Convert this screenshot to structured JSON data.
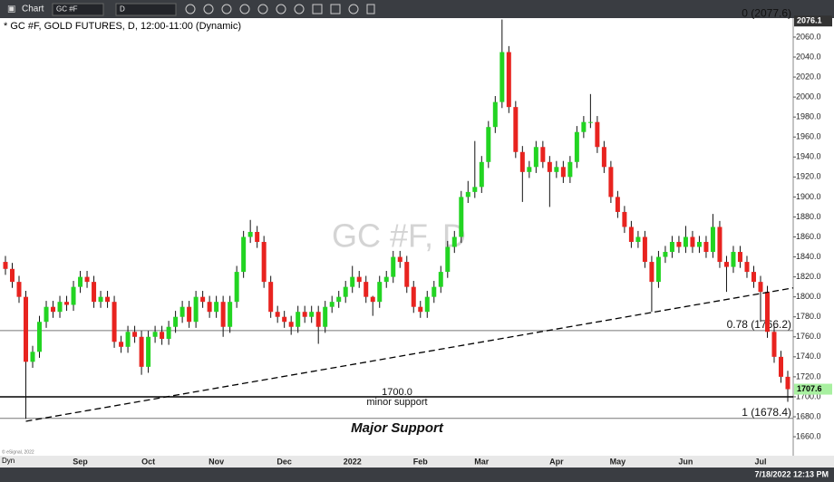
{
  "toolbar": {
    "app": "Chart",
    "symbol": "GC #F",
    "interval": "D"
  },
  "footer": {
    "mode": "Dyn",
    "timestamp": "7/18/2022 12:13 PM",
    "copyright": "© eSignal, 2022"
  },
  "chart_data": {
    "type": "candlestick",
    "title": "* GC #F, GOLD FUTURES, D, 12:00-11:00 (Dynamic)",
    "watermark": "GC #F, D",
    "categories": [
      null,
      null,
      null,
      null,
      null,
      null,
      null,
      null,
      null,
      null,
      null,
      "Sep",
      null,
      null,
      null,
      null,
      null,
      null,
      null,
      null,
      null,
      "Oct",
      null,
      null,
      null,
      null,
      null,
      null,
      null,
      null,
      null,
      "Nov",
      null,
      null,
      null,
      null,
      null,
      null,
      null,
      null,
      null,
      "Dec",
      null,
      null,
      null,
      null,
      null,
      null,
      null,
      null,
      null,
      "2022",
      null,
      null,
      null,
      null,
      null,
      null,
      null,
      null,
      null,
      "Feb",
      null,
      null,
      null,
      null,
      null,
      null,
      null,
      null,
      "Mar",
      null,
      null,
      null,
      null,
      null,
      null,
      null,
      null,
      null,
      null,
      "Apr",
      null,
      null,
      null,
      null,
      null,
      null,
      null,
      null,
      "May",
      null,
      null,
      null,
      null,
      null,
      null,
      null,
      null,
      null,
      "Jun",
      null,
      null,
      null,
      null,
      null,
      null,
      null,
      null,
      null,
      null,
      "Jul",
      null,
      null,
      null,
      null
    ],
    "up_color": "#22d422",
    "down_color": "#e8231f",
    "series": {
      "open": [
        1835,
        1828,
        1815,
        1800,
        1735,
        1745,
        1775,
        1790,
        1785,
        1795,
        1792,
        1810,
        1820,
        1815,
        1795,
        1800,
        1795,
        1755,
        1750,
        1765,
        1760,
        1730,
        1760,
        1765,
        1758,
        1770,
        1780,
        1790,
        1775,
        1800,
        1795,
        1785,
        1795,
        1770,
        1795,
        1825,
        1860,
        1865,
        1855,
        1815,
        1785,
        1780,
        1775,
        1770,
        1785,
        1780,
        1785,
        1770,
        1790,
        1795,
        1800,
        1810,
        1820,
        1815,
        1800,
        1795,
        1815,
        1820,
        1840,
        1835,
        1810,
        1790,
        1785,
        1800,
        1810,
        1825,
        1850,
        1860,
        1900,
        1905,
        1910,
        1935,
        1970,
        1995,
        2045,
        1990,
        1945,
        1925,
        1930,
        1950,
        1935,
        1925,
        1930,
        1920,
        1935,
        1965,
        1975,
        1975,
        1950,
        1930,
        1900,
        1885,
        1870,
        1855,
        1860,
        1835,
        1815,
        1840,
        1845,
        1855,
        1850,
        1860,
        1850,
        1855,
        1845,
        1870,
        1835,
        1830,
        1845,
        1835,
        1825,
        1815,
        1805,
        1765,
        1740,
        1720
      ],
      "high": [
        1841,
        1834,
        1821,
        1806,
        1751,
        1781,
        1796,
        1796,
        1801,
        1801,
        1816,
        1826,
        1826,
        1821,
        1806,
        1806,
        1801,
        1761,
        1771,
        1771,
        1766,
        1766,
        1771,
        1771,
        1776,
        1786,
        1796,
        1796,
        1806,
        1806,
        1801,
        1801,
        1801,
        1801,
        1831,
        1866,
        1877,
        1871,
        1861,
        1821,
        1791,
        1786,
        1781,
        1791,
        1791,
        1791,
        1791,
        1796,
        1801,
        1806,
        1816,
        1831,
        1826,
        1821,
        1801,
        1821,
        1826,
        1846,
        1846,
        1841,
        1816,
        1796,
        1806,
        1816,
        1831,
        1856,
        1866,
        1906,
        1916,
        1956,
        1941,
        1976,
        2001,
        2077.6,
        2051,
        1996,
        1951,
        1936,
        1956,
        1956,
        1941,
        1936,
        1936,
        1941,
        1971,
        1981,
        2003,
        1981,
        1956,
        1936,
        1906,
        1891,
        1876,
        1866,
        1866,
        1841,
        1846,
        1851,
        1861,
        1861,
        1871,
        1866,
        1861,
        1861,
        1883,
        1876,
        1841,
        1851,
        1851,
        1841,
        1831,
        1821,
        1811,
        1771,
        1746,
        1726
      ],
      "low": [
        1822,
        1809,
        1794,
        1678,
        1729,
        1739,
        1769,
        1779,
        1779,
        1786,
        1786,
        1804,
        1809,
        1789,
        1789,
        1789,
        1749,
        1744,
        1744,
        1754,
        1722,
        1724,
        1754,
        1752,
        1752,
        1764,
        1774,
        1769,
        1769,
        1789,
        1779,
        1779,
        1760,
        1764,
        1789,
        1819,
        1854,
        1849,
        1809,
        1779,
        1774,
        1769,
        1762,
        1764,
        1774,
        1774,
        1753,
        1764,
        1784,
        1789,
        1794,
        1804,
        1809,
        1794,
        1781,
        1789,
        1809,
        1814,
        1829,
        1804,
        1784,
        1779,
        1779,
        1794,
        1804,
        1819,
        1844,
        1854,
        1894,
        1899,
        1904,
        1929,
        1964,
        1989,
        1984,
        1939,
        1895,
        1919,
        1924,
        1929,
        1890,
        1919,
        1914,
        1914,
        1929,
        1959,
        1969,
        1944,
        1924,
        1894,
        1879,
        1864,
        1849,
        1849,
        1829,
        1785,
        1809,
        1834,
        1839,
        1844,
        1844,
        1844,
        1844,
        1839,
        1839,
        1829,
        1805,
        1824,
        1829,
        1819,
        1809,
        1775,
        1759,
        1734,
        1714,
        1695
      ],
      "close": [
        1828,
        1815,
        1800,
        1735,
        1745,
        1775,
        1790,
        1785,
        1795,
        1792,
        1810,
        1820,
        1815,
        1795,
        1800,
        1795,
        1755,
        1750,
        1765,
        1760,
        1730,
        1760,
        1765,
        1758,
        1770,
        1780,
        1790,
        1775,
        1800,
        1795,
        1785,
        1795,
        1770,
        1795,
        1825,
        1860,
        1865,
        1855,
        1815,
        1785,
        1780,
        1775,
        1770,
        1785,
        1780,
        1785,
        1770,
        1790,
        1795,
        1800,
        1810,
        1820,
        1815,
        1800,
        1795,
        1815,
        1820,
        1840,
        1835,
        1810,
        1790,
        1785,
        1800,
        1810,
        1825,
        1850,
        1860,
        1900,
        1905,
        1910,
        1935,
        1970,
        1995,
        2045,
        1990,
        1945,
        1925,
        1930,
        1950,
        1935,
        1925,
        1930,
        1920,
        1935,
        1965,
        1975,
        1975,
        1950,
        1930,
        1900,
        1885,
        1870,
        1855,
        1860,
        1835,
        1815,
        1840,
        1845,
        1855,
        1850,
        1860,
        1850,
        1855,
        1845,
        1870,
        1835,
        1830,
        1845,
        1835,
        1825,
        1815,
        1805,
        1765,
        1740,
        1720,
        1707.6
      ]
    },
    "ylim": [
      1641,
      2079
    ],
    "yticks": [
      {
        "value": 1660,
        "label": "1660.0"
      },
      {
        "value": 1680,
        "label": "1680.0"
      },
      {
        "value": 1700,
        "label": "1700.0"
      },
      {
        "value": 1720,
        "label": "1720.0"
      },
      {
        "value": 1740,
        "label": "1740.0"
      },
      {
        "value": 1760,
        "label": "1760.0"
      },
      {
        "value": 1780,
        "label": "1780.0"
      },
      {
        "value": 1800,
        "label": "1800.0"
      },
      {
        "value": 1820,
        "label": "1820.0"
      },
      {
        "value": 1840,
        "label": "1840.0"
      },
      {
        "value": 1860,
        "label": "1860.0"
      },
      {
        "value": 1880,
        "label": "1880.0"
      },
      {
        "value": 1900,
        "label": "1900.0"
      },
      {
        "value": 1920,
        "label": "1920.0"
      },
      {
        "value": 1940,
        "label": "1940.0"
      },
      {
        "value": 1960,
        "label": "1960.0"
      },
      {
        "value": 1980,
        "label": "1980.0"
      },
      {
        "value": 2000,
        "label": "2000.0"
      },
      {
        "value": 2020,
        "label": "2020.0"
      },
      {
        "value": 2040,
        "label": "2040.0"
      },
      {
        "value": 2060,
        "label": "2060.0"
      }
    ],
    "price_markers": [
      {
        "value": 2076.1,
        "label": "2076.1",
        "color": "#333333",
        "text_color": "#ffffff"
      },
      {
        "value": 1707.6,
        "label": "1707.6",
        "color": "#a8f0a0",
        "text_color": "#000000"
      }
    ],
    "fib_levels": [
      {
        "value": 2077.6,
        "label": "0 (2077.6)",
        "line": false
      },
      {
        "value": 1766.2,
        "label": "0.78 (1766.2)",
        "line": true
      },
      {
        "value": 1678.4,
        "label": "1 (1678.4)",
        "line": true
      }
    ],
    "support": {
      "value": 1700,
      "label": "1700.0",
      "note": "minor support"
    },
    "major_support": {
      "value": 1668,
      "label": "Major Support"
    },
    "trend_line": {
      "values": [
        1675.5,
        1809
      ]
    }
  }
}
